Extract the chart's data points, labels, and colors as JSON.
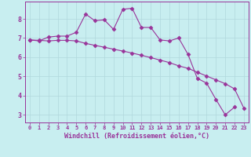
{
  "title": "",
  "xlabel": "Windchill (Refroidissement éolien,°C)",
  "ylabel": "",
  "bg_color": "#c8eef0",
  "line_color": "#993399",
  "grid_color": "#b0d8dc",
  "xlim": [
    -0.5,
    23.5
  ],
  "ylim": [
    2.6,
    8.9
  ],
  "yticks": [
    3,
    4,
    5,
    6,
    7,
    8
  ],
  "xticks": [
    0,
    1,
    2,
    3,
    4,
    5,
    6,
    7,
    8,
    9,
    10,
    11,
    12,
    13,
    14,
    15,
    16,
    17,
    18,
    19,
    20,
    21,
    22,
    23
  ],
  "line1_x": [
    0,
    1,
    2,
    3,
    4,
    5,
    6,
    7,
    8,
    9,
    10,
    11,
    12,
    13,
    14,
    15,
    16,
    17,
    18,
    19,
    20,
    21,
    22
  ],
  "line1_y": [
    6.9,
    6.85,
    7.05,
    7.1,
    7.1,
    7.3,
    8.25,
    7.9,
    7.95,
    7.45,
    8.5,
    8.55,
    7.55,
    7.55,
    6.9,
    6.85,
    7.0,
    6.15,
    4.9,
    4.65,
    3.8,
    3.0,
    3.4
  ],
  "line2_x": [
    0,
    1,
    2,
    3,
    4,
    5,
    6,
    7,
    8,
    9,
    10,
    11,
    12,
    13,
    14,
    15,
    16,
    17,
    18,
    19,
    20,
    21,
    22,
    23
  ],
  "line2_y": [
    6.9,
    6.88,
    6.85,
    6.88,
    6.88,
    6.85,
    6.72,
    6.62,
    6.52,
    6.42,
    6.32,
    6.22,
    6.1,
    5.98,
    5.85,
    5.72,
    5.55,
    5.42,
    5.22,
    5.02,
    4.82,
    4.62,
    4.35,
    3.35
  ],
  "tick_color": "#993399",
  "xlabel_color": "#993399",
  "border_color": "#993399"
}
